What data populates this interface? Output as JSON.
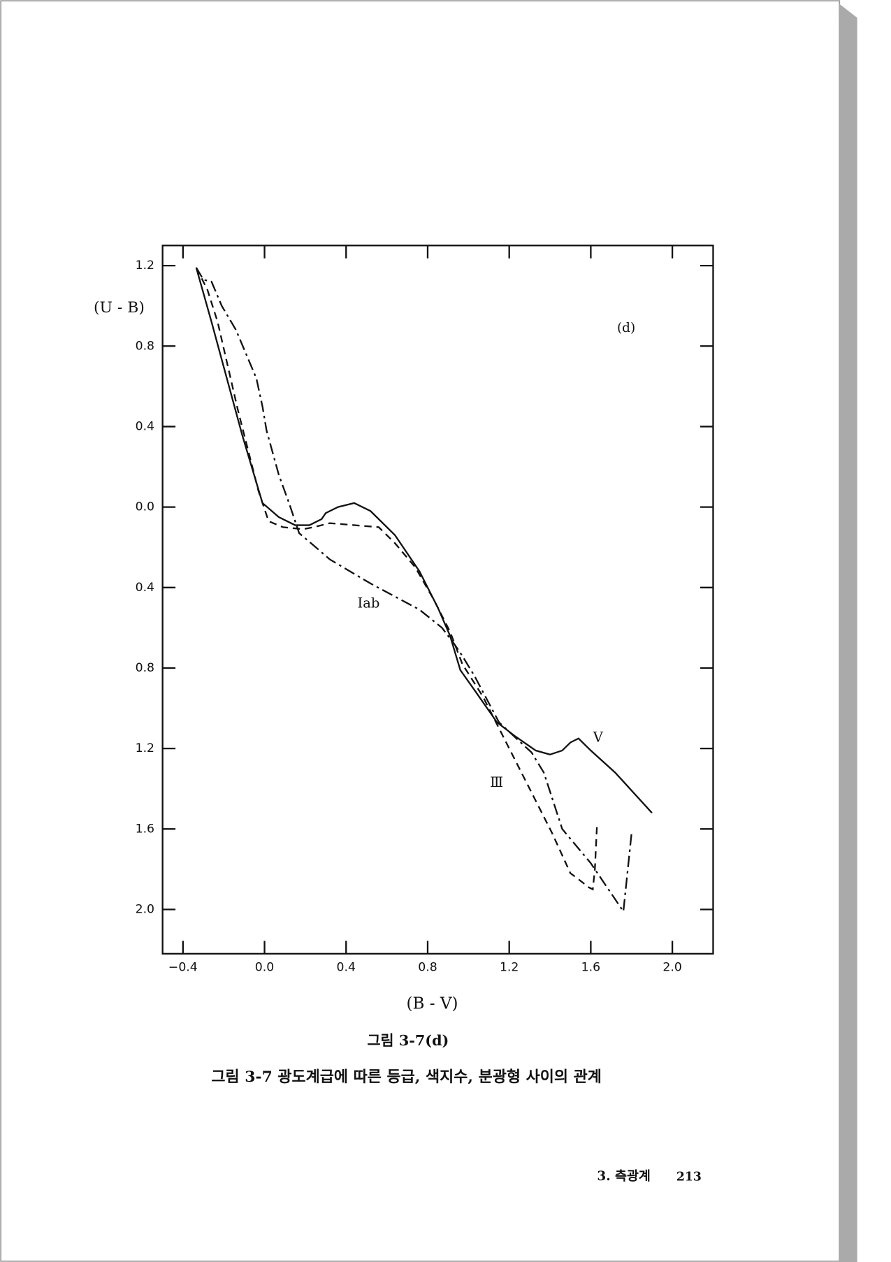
{
  "chart_data": {
    "type": "line",
    "x_label": "(B - V)",
    "y_label": "(U - B)",
    "panel_label": "(d)",
    "xlim": [
      -0.5,
      2.2
    ],
    "ylim": [
      -1.3,
      2.22
    ],
    "y_inverted": true,
    "xticks": [
      {
        "value": -0.4,
        "label": "−0.4"
      },
      {
        "value": 0,
        "label": "0.0"
      },
      0.4,
      0.8,
      1.2,
      1.6,
      {
        "value": 2,
        "label": "2.0"
      }
    ],
    "yticks": [
      {
        "value": -1.2,
        "label": "1.2"
      },
      {
        "value": -0.8,
        "label": "0.8"
      },
      {
        "value": -0.4,
        "label": "0.4"
      },
      {
        "value": 0,
        "label": "0.0"
      },
      0.4,
      0.8,
      1.2,
      1.6,
      {
        "value": 2,
        "label": "2.0"
      }
    ],
    "series": [
      {
        "name": "V",
        "color": "#111111",
        "dash": "solid",
        "x": [
          -0.335,
          -0.26,
          -0.11,
          -0.01,
          0.07,
          0.15,
          0.22,
          0.28,
          0.3,
          0.36,
          0.44,
          0.52,
          0.64,
          0.76,
          0.85,
          0.91,
          0.96,
          1.03,
          1.14,
          1.23,
          1.33,
          1.4,
          1.46,
          1.5,
          1.54,
          1.6,
          1.72,
          1.9
        ],
        "values": [
          -1.19,
          -0.92,
          -0.36,
          -0.02,
          0.05,
          0.09,
          0.09,
          0.06,
          0.03,
          0.0,
          -0.02,
          0.02,
          0.14,
          0.32,
          0.5,
          0.64,
          0.81,
          0.91,
          1.07,
          1.14,
          1.21,
          1.23,
          1.21,
          1.17,
          1.15,
          1.21,
          1.32,
          1.52
        ]
      },
      {
        "name": "Ⅲ",
        "color": "#111111",
        "dash": "dashed",
        "x": [
          -0.335,
          -0.28,
          -0.23,
          -0.13,
          -0.03,
          0.02,
          0.09,
          0.19,
          0.24,
          0.32,
          0.44,
          0.56,
          0.64,
          0.74,
          0.83,
          0.91,
          0.97,
          1.07,
          1.17,
          1.29,
          1.41,
          1.5,
          1.54,
          1.59,
          1.61,
          1.62,
          1.63
        ],
        "values": [
          -1.19,
          -1.08,
          -0.92,
          -0.48,
          -0.08,
          0.07,
          0.1,
          0.11,
          0.1,
          0.08,
          0.09,
          0.1,
          0.18,
          0.3,
          0.46,
          0.62,
          0.78,
          0.94,
          1.14,
          1.38,
          1.62,
          1.82,
          1.85,
          1.89,
          1.9,
          1.8,
          1.59
        ]
      },
      {
        "name": "Iab",
        "color": "#111111",
        "dash": "dashdot",
        "x": [
          -0.335,
          -0.3,
          -0.26,
          -0.21,
          -0.14,
          -0.04,
          -0.01,
          0.01,
          0.07,
          0.12,
          0.17,
          0.24,
          0.32,
          0.52,
          0.76,
          0.87,
          0.93,
          0.97,
          1.03,
          1.15,
          1.31,
          1.37,
          1.46,
          1.6,
          1.76,
          1.8
        ],
        "values": [
          -1.19,
          -1.13,
          -1.12,
          -1.0,
          -0.88,
          -0.64,
          -0.5,
          -0.38,
          -0.16,
          -0.02,
          0.13,
          0.19,
          0.26,
          0.38,
          0.51,
          0.6,
          0.68,
          0.74,
          0.84,
          1.07,
          1.22,
          1.32,
          1.6,
          1.77,
          2.01,
          1.62
        ]
      }
    ]
  },
  "figure_label": "그림 3-7(d)",
  "caption": "그림 3-7  광도계급에 따른 등급, 색지수, 분광형 사이의 관계",
  "footer": {
    "section": "3. 측광계",
    "page_number": "213"
  }
}
